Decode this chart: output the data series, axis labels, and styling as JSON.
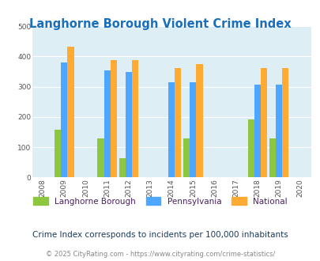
{
  "title": "Langhorne Borough Violent Crime Index",
  "subtitle": "Crime Index corresponds to incidents per 100,000 inhabitants",
  "footer": "© 2025 CityRating.com - https://www.cityrating.com/crime-statistics/",
  "years": [
    2009,
    2011,
    2012,
    2014,
    2015,
    2018,
    2019
  ],
  "langhorne": [
    158,
    128,
    65,
    0,
    130,
    193,
    130
  ],
  "pennsylvania": [
    380,
    355,
    349,
    315,
    315,
    306,
    306
  ],
  "national": [
    432,
    388,
    387,
    362,
    375,
    362,
    362
  ],
  "xlim": [
    2007.5,
    2020.5
  ],
  "ylim": [
    0,
    500
  ],
  "yticks": [
    0,
    100,
    200,
    300,
    400,
    500
  ],
  "xticks": [
    2008,
    2009,
    2010,
    2011,
    2012,
    2013,
    2014,
    2015,
    2016,
    2017,
    2018,
    2019,
    2020
  ],
  "color_langhorne": "#8dc63f",
  "color_pennsylvania": "#4da6ff",
  "color_national": "#ffaa33",
  "bg_color": "#deeef5",
  "title_color": "#1a6fbd",
  "bar_width": 0.3,
  "grid_color": "#ffffff",
  "legend_text_color": "#4a2060",
  "subtitle_color": "#1a3a5c",
  "footer_color": "#888888",
  "footer_link_color": "#3366cc"
}
